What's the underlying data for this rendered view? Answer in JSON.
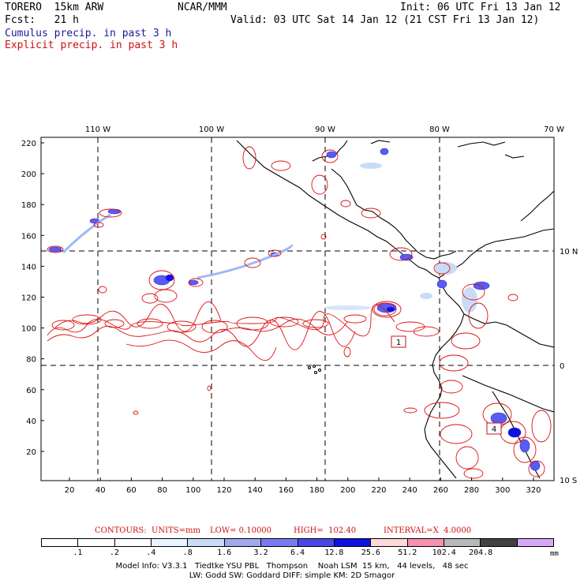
{
  "header": {
    "line1_left": "TORERO  15km ARW",
    "line1_center": "NCAR/MMM",
    "line1_right": "Init: 06 UTC Fri 13 Jan 12",
    "line2_left": "Fcst:   21 h",
    "line2_right": "Valid: 03 UTC Sat 14 Jan 12 (21 CST Fri 13 Jan 12)",
    "legend_cumulus": "Cumulus precip. in past 3 h",
    "legend_explicit": "Explicit precip. in past 3 h"
  },
  "map": {
    "longitude_labels": [
      "110 W",
      "100 W",
      "90 W",
      "80 W",
      "70 W"
    ],
    "latitude_labels": [
      "10 N",
      "0",
      "10 S"
    ],
    "y_ticks": [
      "220",
      "200",
      "180",
      "160",
      "140",
      "120",
      "100",
      "80",
      "60",
      "40",
      "20"
    ],
    "x_ticks": [
      "20",
      "40",
      "60",
      "80",
      "100",
      "120",
      "140",
      "160",
      "180",
      "200",
      "220",
      "240",
      "260",
      "280",
      "300",
      "320"
    ],
    "boxes": [
      "1",
      "4"
    ],
    "colors": {
      "cumulus": "#3333ff",
      "explicit": "#dd1111",
      "land": "#000000"
    }
  },
  "contours": {
    "units": "CONTOURS:  UNITS=mm",
    "low": "LOW= 0.10000",
    "high": "HIGH=  102.40",
    "interval": "INTERVAL=X  4.0000"
  },
  "scale": {
    "colors": [
      "#ffffff",
      "#ffffff",
      "#ffffff",
      "#e8f4ff",
      "#c8dcf8",
      "#a0a8f0",
      "#7a7af0",
      "#4848e8",
      "#1010e0",
      "#ffd8d8",
      "#f890b0",
      "#b8b8b8",
      "#404040",
      "#d8a8f8"
    ],
    "labels": [
      ".1",
      ".2",
      ".4",
      ".8",
      "1.6",
      "3.2",
      "6.4",
      "12.8",
      "25.6",
      "51.2",
      "102.4",
      "204.8"
    ],
    "unit": "mm"
  },
  "model_info": {
    "line1": "Model Info: V3.3.1   Tiedtke YSU PBL   Thompson    Noah LSM  15 km,   44 levels,   48 sec",
    "line2": "LW: Godd SW: Goddard DIFF: simple KM: 2D Smagor"
  }
}
